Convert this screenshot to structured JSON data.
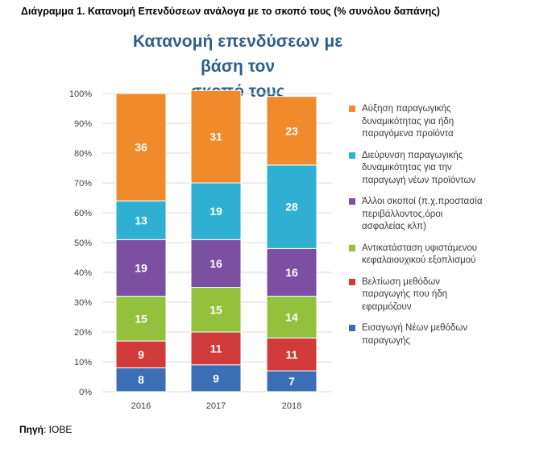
{
  "caption": "Διάγραμμα 1. Κατανομή Επενδύσεων ανάλογα με το σκοπό τους (% συνόλου δαπάνης)",
  "source": {
    "label": "Πηγή",
    "text": ": ΙΟΒΕ"
  },
  "chart_data": {
    "type": "stacked-bar-100",
    "title_lines": [
      "Κατανομή επενδύσεων με βάση τον",
      "σκοπό τους"
    ],
    "categories": [
      "2016",
      "2017",
      "2018"
    ],
    "y_ticks": [
      "0%",
      "10%",
      "20%",
      "30%",
      "40%",
      "50%",
      "60%",
      "70%",
      "80%",
      "90%",
      "100%"
    ],
    "ylim": [
      0,
      100
    ],
    "grid": true,
    "legend_position": "right",
    "series": [
      {
        "name": "Εισαγωγή Νέων μεθόδων παραγωγής",
        "color": "#3a6fb5",
        "values": [
          8,
          9,
          7
        ]
      },
      {
        "name": "Βελτίωση μεθόδων παραγωγής που ήδη εφαρμόζουν",
        "color": "#d23b3b",
        "values": [
          9,
          11,
          11
        ]
      },
      {
        "name": "Αντικατάσταση υφιστάμενου κεφαλαιουχικού εξοπλισμού",
        "color": "#93c13d",
        "values": [
          15,
          15,
          14
        ]
      },
      {
        "name": "Άλλοι σκοποί (π.χ.προστασία περιβάλλοντος,όροι ασφαλείας κλπ)",
        "color": "#7b4fa2",
        "values": [
          19,
          16,
          16
        ]
      },
      {
        "name": "Διεύρυνση παραγωγικής δυναμικότητας για την παραγωγή νέων προϊόντων",
        "color": "#2fb0d2",
        "values": [
          13,
          19,
          28
        ]
      },
      {
        "name": "Αύξηση παραγωγικής δυναμικότητας για ήδη παραγόμενα προϊόντα",
        "color": "#f18a2a",
        "values": [
          36,
          31,
          23
        ]
      }
    ],
    "legend": [
      {
        "color": "#f18a2a",
        "lines": [
          "Αύξηση παραγωγικής",
          "δυναμικότητας για ήδη",
          "παραγόμενα προϊόντα"
        ]
      },
      {
        "color": "#2fb0d2",
        "lines": [
          "Διεύρυνση παραγωγικής",
          "δυναμικότητας για την",
          "παραγωγή νέων προϊόντων"
        ]
      },
      {
        "color": "#7b4fa2",
        "lines": [
          "Άλλοι σκοποί (π.χ.προστασία",
          "περιβάλλοντος,όροι",
          "ασφαλείας κλπ)"
        ]
      },
      {
        "color": "#93c13d",
        "lines": [
          "Αντικατάσταση υφιστάμενου",
          "κεφαλαιουχικού εξοπλισμού"
        ]
      },
      {
        "color": "#d23b3b",
        "lines": [
          "Βελτίωση μεθόδων",
          "παραγωγής που ήδη",
          "εφαρμόζουν"
        ]
      },
      {
        "color": "#3a6fb5",
        "lines": [
          "Εισαγωγή Νέων μεθόδων",
          "παραγωγής"
        ]
      }
    ]
  }
}
